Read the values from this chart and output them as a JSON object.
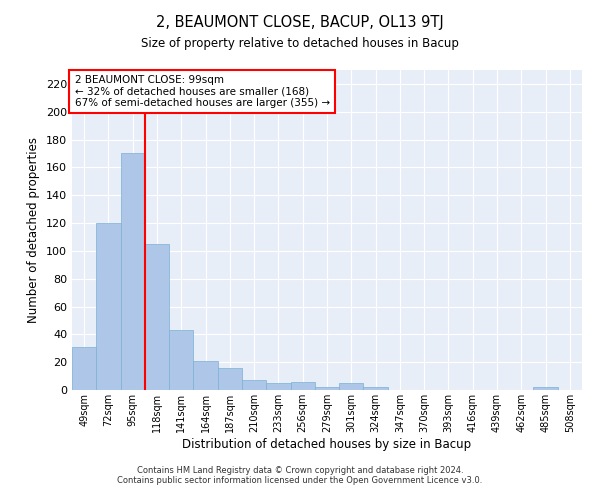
{
  "title": "2, BEAUMONT CLOSE, BACUP, OL13 9TJ",
  "subtitle": "Size of property relative to detached houses in Bacup",
  "xlabel": "Distribution of detached houses by size in Bacup",
  "ylabel": "Number of detached properties",
  "bar_color": "#aec6e8",
  "bar_edge_color": "#7ab0d4",
  "bg_color": "#e8eef8",
  "grid_color": "#ffffff",
  "categories": [
    "49sqm",
    "72sqm",
    "95sqm",
    "118sqm",
    "141sqm",
    "164sqm",
    "187sqm",
    "210sqm",
    "233sqm",
    "256sqm",
    "279sqm",
    "301sqm",
    "324sqm",
    "347sqm",
    "370sqm",
    "393sqm",
    "416sqm",
    "439sqm",
    "462sqm",
    "485sqm",
    "508sqm"
  ],
  "values": [
    31,
    120,
    170,
    105,
    43,
    21,
    16,
    7,
    5,
    6,
    2,
    5,
    2,
    0,
    0,
    0,
    0,
    0,
    0,
    2,
    0
  ],
  "ylim": [
    0,
    230
  ],
  "yticks": [
    0,
    20,
    40,
    60,
    80,
    100,
    120,
    140,
    160,
    180,
    200,
    220
  ],
  "annotation_line1": "2 BEAUMONT CLOSE: 99sqm",
  "annotation_line2": "← 32% of detached houses are smaller (168)",
  "annotation_line3": "67% of semi-detached houses are larger (355) →",
  "vline_x": 2.5,
  "footer_line1": "Contains HM Land Registry data © Crown copyright and database right 2024.",
  "footer_line2": "Contains public sector information licensed under the Open Government Licence v3.0."
}
